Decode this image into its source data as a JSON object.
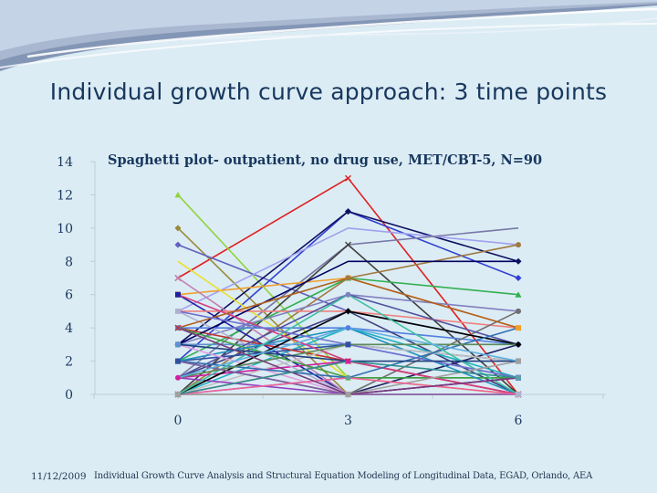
{
  "slide": {
    "title": "Individual growth curve approach: 3 time points",
    "footer_date": "11/12/2009",
    "footer_text": "Individual Growth Curve Analysis and Structural Equation Modeling of Longitudinal Data, EGAD, Orlando, AEA"
  },
  "colors": {
    "background": "#dcecf4",
    "wave_dark": "#7f93b3",
    "wave_light": "#ffffff",
    "title": "#17375e"
  },
  "chart_data": {
    "type": "line",
    "title": "Spaghetti plot- outpatient, no drug use, MET/CBT-5, N=90",
    "xlabel": "",
    "ylabel": "",
    "x": [
      0,
      3,
      6
    ],
    "x_ticks": [
      "0",
      "3",
      "6"
    ],
    "y_ticks": [
      "0",
      "2",
      "4",
      "6",
      "8",
      "10",
      "12",
      "14"
    ],
    "ylim": [
      0,
      14
    ],
    "grid": false,
    "legend": "none",
    "series": [
      {
        "values": [
          7,
          13,
          0
        ],
        "color": "#e02020",
        "marker": "x"
      },
      {
        "values": [
          12,
          1,
          0
        ],
        "color": "#8fd43a",
        "marker": "triangle"
      },
      {
        "values": [
          10,
          0,
          0
        ],
        "color": "#9a8a3c",
        "marker": "diamond"
      },
      {
        "values": [
          9,
          5,
          3
        ],
        "color": "#6060c0",
        "marker": "diamond"
      },
      {
        "values": [
          2,
          11,
          7
        ],
        "color": "#3040d0",
        "marker": "diamond"
      },
      {
        "values": [
          3,
          11,
          8
        ],
        "color": "#101060",
        "marker": "diamond"
      },
      {
        "values": [
          5,
          10,
          9
        ],
        "color": "#a0a0f0",
        "marker": "none"
      },
      {
        "values": [
          1,
          9,
          10
        ],
        "color": "#7878a8",
        "marker": "none"
      },
      {
        "values": [
          0,
          9,
          0
        ],
        "color": "#404040",
        "marker": "x"
      },
      {
        "values": [
          6,
          7,
          4
        ],
        "color": "#f0a030",
        "marker": "square"
      },
      {
        "values": [
          2,
          7,
          6
        ],
        "color": "#30b050",
        "marker": "triangle"
      },
      {
        "values": [
          0,
          7,
          9
        ],
        "color": "#a07840",
        "marker": "circle"
      },
      {
        "values": [
          8,
          1,
          0
        ],
        "color": "#e8e030",
        "marker": "none"
      },
      {
        "values": [
          6,
          0,
          1
        ],
        "color": "#2020a0",
        "marker": "square"
      },
      {
        "values": [
          7,
          0,
          0
        ],
        "color": "#c080b0",
        "marker": "x"
      },
      {
        "values": [
          5,
          5,
          4
        ],
        "color": "#f08080",
        "marker": "none"
      },
      {
        "values": [
          4,
          4,
          3
        ],
        "color": "#5080e0",
        "marker": "circle"
      },
      {
        "values": [
          3,
          6,
          5
        ],
        "color": "#8080c0",
        "marker": "circle"
      },
      {
        "values": [
          1,
          5,
          0
        ],
        "color": "#404080",
        "marker": "none"
      },
      {
        "values": [
          0,
          4,
          1
        ],
        "color": "#20b0c0",
        "marker": "none"
      },
      {
        "values": [
          3,
          3,
          1
        ],
        "color": "#6090d0",
        "marker": "square"
      },
      {
        "values": [
          2,
          3,
          2
        ],
        "color": "#3050a0",
        "marker": "square"
      },
      {
        "values": [
          4,
          2,
          0
        ],
        "color": "#c03030",
        "marker": "x"
      },
      {
        "values": [
          1,
          2,
          0
        ],
        "color": "#d020a0",
        "marker": "circle"
      },
      {
        "values": [
          0,
          1,
          1
        ],
        "color": "#60a0a0",
        "marker": "circle"
      },
      {
        "values": [
          2,
          0,
          3
        ],
        "color": "#202060",
        "marker": "none"
      },
      {
        "values": [
          5,
          0,
          0
        ],
        "color": "#b0b0d0",
        "marker": "square"
      },
      {
        "values": [
          0,
          0,
          5
        ],
        "color": "#707070",
        "marker": "circle"
      },
      {
        "values": [
          3,
          8,
          8
        ],
        "color": "#000060",
        "marker": "none"
      },
      {
        "values": [
          1,
          6,
          3
        ],
        "color": "#5050a0",
        "marker": "none"
      },
      {
        "values": [
          0,
          2,
          0
        ],
        "color": "#e04040",
        "marker": "none"
      },
      {
        "values": [
          4,
          1,
          1
        ],
        "color": "#40a040",
        "marker": "none"
      },
      {
        "values": [
          2,
          4,
          0
        ],
        "color": "#2090c0",
        "marker": "none"
      },
      {
        "values": [
          0,
          3,
          2
        ],
        "color": "#c0c0c0",
        "marker": "none"
      },
      {
        "values": [
          1,
          0,
          1
        ],
        "color": "#9040c0",
        "marker": "none"
      },
      {
        "values": [
          3,
          0,
          0
        ],
        "color": "#e0a0e0",
        "marker": "none"
      },
      {
        "values": [
          0,
          5,
          3
        ],
        "color": "#000000",
        "marker": "diamond"
      },
      {
        "values": [
          6,
          2,
          0
        ],
        "color": "#d04080",
        "marker": "none"
      },
      {
        "values": [
          2,
          1,
          4
        ],
        "color": "#3070b0",
        "marker": "none"
      },
      {
        "values": [
          4,
          7,
          4
        ],
        "color": "#b06020",
        "marker": "none"
      },
      {
        "values": [
          0,
          6,
          0
        ],
        "color": "#40c0a0",
        "marker": "none"
      },
      {
        "values": [
          5,
          3,
          1
        ],
        "color": "#7070d0",
        "marker": "none"
      },
      {
        "values": [
          1,
          3,
          3
        ],
        "color": "#5a8a5a",
        "marker": "none"
      },
      {
        "values": [
          0,
          0,
          2
        ],
        "color": "#a0a0a0",
        "marker": "square"
      },
      {
        "values": [
          2,
          0,
          0
        ],
        "color": "#8060a0",
        "marker": "none"
      },
      {
        "values": [
          3,
          2,
          2
        ],
        "color": "#204080",
        "marker": "none"
      },
      {
        "values": [
          0,
          1,
          0
        ],
        "color": "#f060a0",
        "marker": "none"
      },
      {
        "values": [
          1,
          4,
          2
        ],
        "color": "#60b0e0",
        "marker": "none"
      },
      {
        "values": [
          4,
          0,
          1
        ],
        "color": "#7a3a7a",
        "marker": "none"
      },
      {
        "values": [
          0,
          2,
          1
        ],
        "color": "#309090",
        "marker": "none"
      }
    ]
  }
}
